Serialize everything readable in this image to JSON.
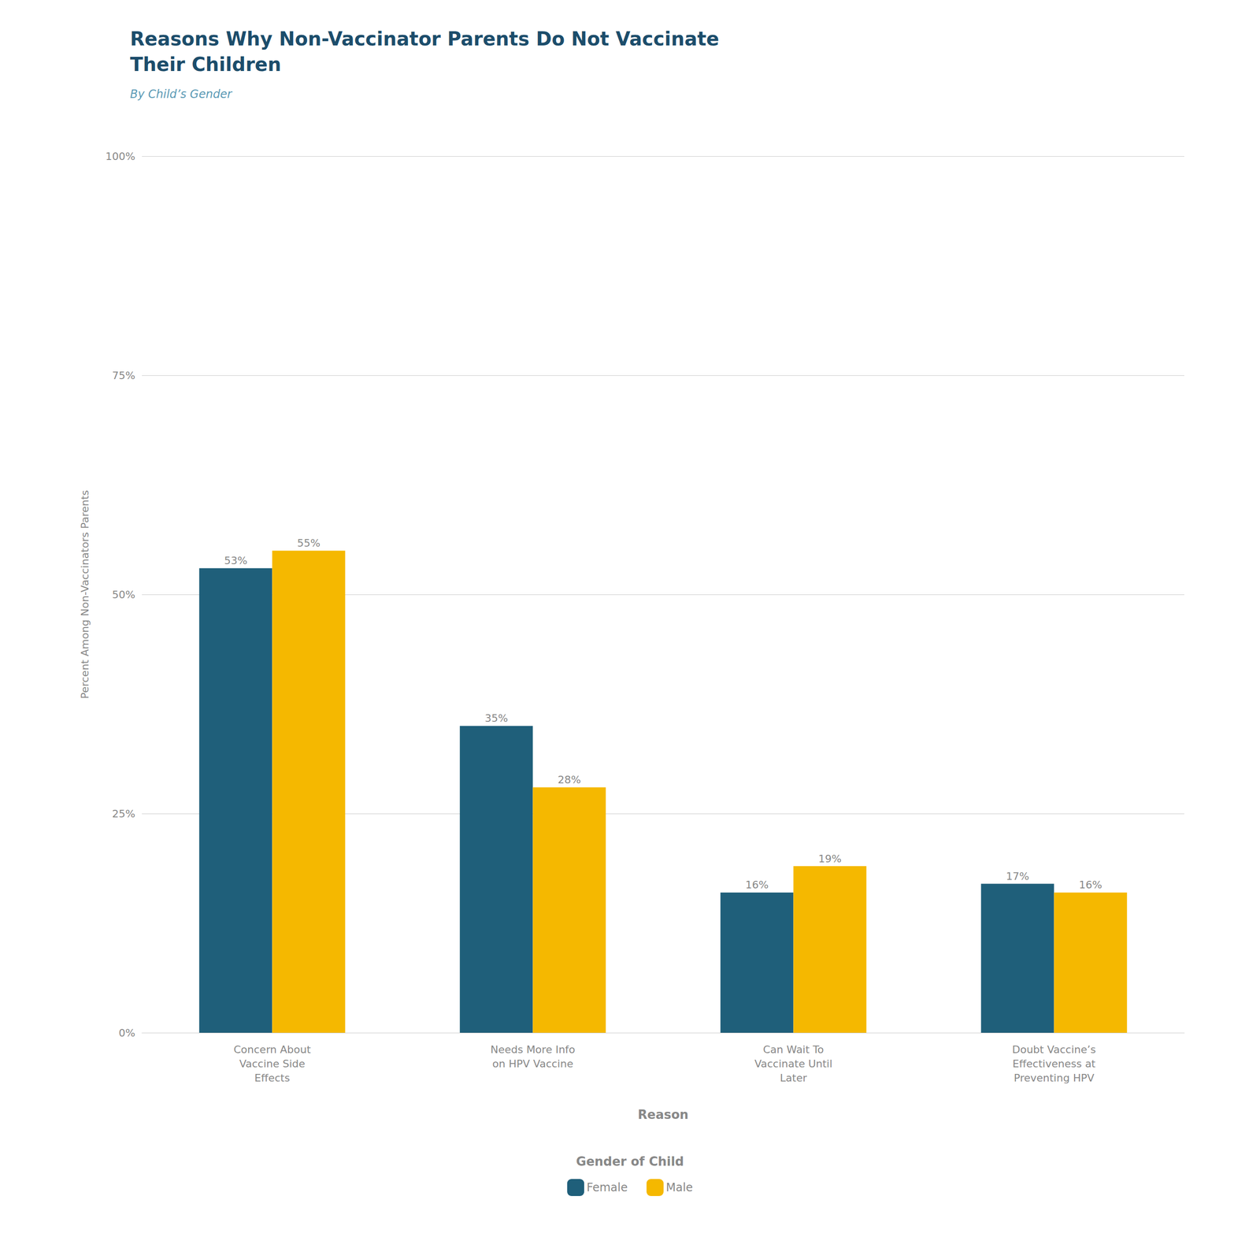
{
  "chart_data": {
    "type": "bar",
    "title": "Reasons Why Non-Vaccinator Parents Do Not Vaccinate\nTheir Children",
    "subtitle": "By Child’s Gender",
    "categories": [
      "Concern About\nVaccine Side\nEffects",
      "Needs More Info\non HPV Vaccine",
      "Can Wait To\nVaccinate Until\nLater",
      "Doubt Vaccine’s\nEffectiveness at\nPreventing HPV"
    ],
    "series": [
      {
        "name": "Female",
        "color": "#1f5f7a",
        "values": [
          53,
          35,
          16,
          17
        ],
        "value_labels": [
          "53%",
          "35%",
          "16%",
          "17%"
        ]
      },
      {
        "name": "Male",
        "color": "#f5b800",
        "values": [
          55,
          28,
          19,
          16
        ],
        "value_labels": [
          "55%",
          "28%",
          "19%",
          "16%"
        ]
      }
    ],
    "xlabel": "Reason",
    "ylabel": "Percent Among Non-Vaccinators Parents",
    "ylim": [
      0,
      100
    ],
    "yticks": [
      {
        "value": 0,
        "label": "0%"
      },
      {
        "value": 25,
        "label": "25%"
      },
      {
        "value": 50,
        "label": "50%"
      },
      {
        "value": 75,
        "label": "75%"
      },
      {
        "value": 100,
        "label": "100%"
      }
    ],
    "grid": true,
    "legend": "bottom",
    "legend_title": "Gender of Child",
    "data_labels": true
  }
}
